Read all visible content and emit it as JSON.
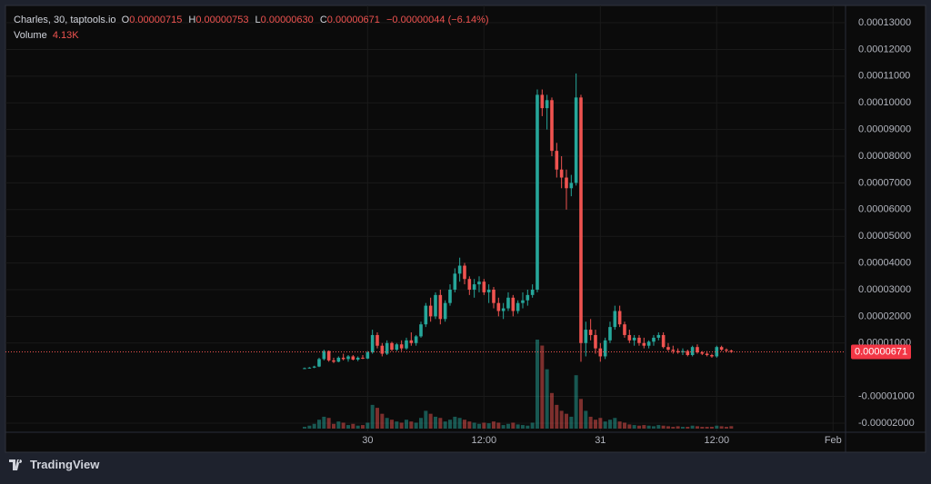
{
  "chart_data": {
    "type": "candlestick",
    "legend": {
      "title": "Charles, 30, taptools.io",
      "o_label": "O",
      "open": "0.00000715",
      "h_label": "H",
      "high": "0.00000753",
      "l_label": "L",
      "low": "0.00000630",
      "c_label": "C",
      "close": "0.00000671",
      "change": "−0.00000044 (−6.14%)",
      "volume_label": "Volume",
      "volume": "4.13K"
    },
    "brand": "TradingView",
    "up_color": "#26a69a",
    "down_color": "#ef5350",
    "grid": true,
    "ylim": [
      -2.41e-05,
      0.0001358
    ],
    "yticks": [
      {
        "value": 0.00013,
        "label": "0.00013000"
      },
      {
        "value": 0.00012,
        "label": "0.00012000"
      },
      {
        "value": 0.00011,
        "label": "0.00011000"
      },
      {
        "value": 0.0001,
        "label": "0.00010000"
      },
      {
        "value": 9e-05,
        "label": "0.00009000"
      },
      {
        "value": 8e-05,
        "label": "0.00008000"
      },
      {
        "value": 7e-05,
        "label": "0.00007000"
      },
      {
        "value": 6e-05,
        "label": "0.00006000"
      },
      {
        "value": 5e-05,
        "label": "0.00005000"
      },
      {
        "value": 4e-05,
        "label": "0.00004000"
      },
      {
        "value": 3e-05,
        "label": "0.00003000"
      },
      {
        "value": 2e-05,
        "label": "0.00002000"
      },
      {
        "value": 1e-05,
        "label": "0.00001000"
      },
      {
        "value": -1e-05,
        "label": "-0.00001000"
      },
      {
        "value": -2e-05,
        "label": "-0.00002000"
      }
    ],
    "xticks": [
      {
        "value": 13,
        "label": "30"
      },
      {
        "value": 37,
        "label": "12:00"
      },
      {
        "value": 61,
        "label": "31"
      },
      {
        "value": 85,
        "label": "12:00"
      },
      {
        "value": 109,
        "label": "Feb"
      }
    ],
    "open": [
      5e-07,
      6e-07,
      8e-07,
      1.2e-06,
      4e-06,
      7e-06,
      3.5e-06,
      3e-06,
      4.5e-06,
      4e-06,
      5e-06,
      3.8e-06,
      4.5e-06,
      4.2e-06,
      6.5e-06,
      1.3e-05,
      9e-06,
      6e-06,
      1e-05,
      7.5e-06,
      9.5e-06,
      8e-06,
      1.1e-05,
      1e-05,
      1.25e-05,
      1.7e-05,
      2.4e-05,
      2e-05,
      2.8e-05,
      1.9e-05,
      2.5e-05,
      3e-05,
      3.6e-05,
      3.9e-05,
      3.4e-05,
      3e-05,
      3.2e-05,
      3.3e-05,
      2.9e-05,
      3e-05,
      2.5e-05,
      2.2e-05,
      2.3e-05,
      2.7e-05,
      2.2e-05,
      2.5e-05,
      2.6e-05,
      2.8e-05,
      3e-05,
      0.000103,
      9.8e-05,
      0.000101,
      8.2e-05,
      7.5e-05,
      7.2e-05,
      6.8e-05,
      7e-05,
      0.000102,
      1e-05,
      1.5e-05,
      1.3e-05,
      8e-06,
      5e-06,
      1.1e-05,
      1.6e-05,
      2.2e-05,
      1.7e-05,
      1.3e-05,
      1.1e-05,
      1.2e-05,
      1e-05,
      9e-06,
      1.05e-05,
      1.2e-05,
      1.3e-05,
      8.5e-06,
      7.5e-06,
      7e-06,
      6.5e-06,
      7e-06,
      5.5e-06,
      8.5e-06,
      6.5e-06,
      6e-06,
      5.5e-06,
      5e-06,
      8.5e-06,
      7.5e-06,
      7.15e-06
    ],
    "high": [
      8e-07,
      1e-06,
      1.5e-06,
      4.5e-06,
      7.5e-06,
      7.2e-06,
      4.5e-06,
      5e-06,
      6e-06,
      5.5e-06,
      5.5e-06,
      5e-06,
      5.5e-06,
      7e-06,
      1.5e-05,
      1.4e-05,
      1e-05,
      1.1e-05,
      1.05e-05,
      1e-05,
      1.1e-05,
      1.2e-05,
      1.4e-05,
      1.3e-05,
      1.8e-05,
      2.5e-05,
      2.7e-05,
      2.9e-05,
      3e-05,
      2.6e-05,
      3.2e-05,
      3.8e-05,
      4.2e-05,
      4e-05,
      3.5e-05,
      3.4e-05,
      3.5e-05,
      3.4e-05,
      3.2e-05,
      3.1e-05,
      2.7e-05,
      2.5e-05,
      2.9e-05,
      2.8e-05,
      2.6e-05,
      2.9e-05,
      3e-05,
      3.2e-05,
      0.000105,
      0.000105,
      0.000103,
      0.000102,
      8.5e-05,
      8e-05,
      7.5e-05,
      7.3e-05,
      0.000111,
      0.000103,
      1.8e-05,
      1.9e-05,
      1.5e-05,
      1e-05,
      1.2e-05,
      1.8e-05,
      2.4e-05,
      2.4e-05,
      1.8e-05,
      1.5e-05,
      1.3e-05,
      1.3e-05,
      1.2e-05,
      1.1e-05,
      1.3e-05,
      1.4e-05,
      1.4e-05,
      1e-05,
      9e-06,
      8e-06,
      8e-06,
      7.5e-06,
      9e-06,
      9.5e-06,
      7e-06,
      7e-06,
      6e-06,
      9e-06,
      9e-06,
      8e-06,
      7.53e-06
    ],
    "low": [
      3e-07,
      4e-07,
      6e-07,
      1e-06,
      3.5e-06,
      3e-06,
      2.5e-06,
      2.8e-06,
      3.5e-06,
      3e-06,
      3.5e-06,
      3.2e-06,
      4e-06,
      4e-06,
      6e-06,
      8e-06,
      5e-06,
      5.5e-06,
      7e-06,
      7e-06,
      7e-06,
      7.5e-06,
      9e-06,
      9e-06,
      1.2e-05,
      1.6e-05,
      1.8e-05,
      1.9e-05,
      1.7e-05,
      1.8e-05,
      2.4e-05,
      2.9e-05,
      3.3e-05,
      3.2e-05,
      2.8e-05,
      2.7e-05,
      2.9e-05,
      2.8e-05,
      2.5e-05,
      2.3e-05,
      2e-05,
      1.9e-05,
      2.2e-05,
      2e-05,
      2.1e-05,
      2.3e-05,
      2.4e-05,
      2.7e-05,
      2.9e-05,
      9.5e-05,
      9e-05,
      8e-05,
      7.2e-05,
      6.8e-05,
      6e-05,
      6.5e-05,
      6.9e-05,
      3e-06,
      5e-06,
      1.1e-05,
      6e-06,
      3e-06,
      4e-06,
      1e-05,
      1.5e-05,
      1.6e-05,
      1.2e-05,
      1e-05,
      9e-06,
      9e-06,
      8e-06,
      8e-06,
      9e-06,
      1.1e-05,
      8e-06,
      7e-06,
      6e-06,
      6e-06,
      5.5e-06,
      5e-06,
      5e-06,
      6e-06,
      5.5e-06,
      5e-06,
      4.5e-06,
      4.5e-06,
      7e-06,
      6.5e-06,
      6.3e-06
    ],
    "close": [
      6e-07,
      8e-07,
      1.2e-06,
      4e-06,
      7e-06,
      3.5e-06,
      3e-06,
      4.5e-06,
      4e-06,
      5e-06,
      3.8e-06,
      4.5e-06,
      4.2e-06,
      6.5e-06,
      1.3e-05,
      9e-06,
      6e-06,
      1e-05,
      7.5e-06,
      9.5e-06,
      8e-06,
      1.1e-05,
      1e-05,
      1.25e-05,
      1.7e-05,
      2.4e-05,
      2e-05,
      2.8e-05,
      1.9e-05,
      2.5e-05,
      3e-05,
      3.6e-05,
      3.9e-05,
      3.4e-05,
      3e-05,
      3.2e-05,
      3.3e-05,
      2.9e-05,
      3e-05,
      2.5e-05,
      2.2e-05,
      2.3e-05,
      2.7e-05,
      2.2e-05,
      2.5e-05,
      2.6e-05,
      2.8e-05,
      3e-05,
      0.000103,
      9.8e-05,
      0.000101,
      8.2e-05,
      7.5e-05,
      7.2e-05,
      6.8e-05,
      7e-05,
      0.000102,
      1e-05,
      1.5e-05,
      1.3e-05,
      8e-06,
      5e-06,
      1.1e-05,
      1.6e-05,
      2.2e-05,
      1.7e-05,
      1.3e-05,
      1.1e-05,
      1.2e-05,
      1e-05,
      9e-06,
      1.05e-05,
      1.2e-05,
      1.3e-05,
      8.5e-06,
      7.5e-06,
      7e-06,
      6.5e-06,
      7e-06,
      5.5e-06,
      8.5e-06,
      6.5e-06,
      6e-06,
      5.5e-06,
      5e-06,
      8.5e-06,
      7.5e-06,
      7.15e-06,
      6.71e-06
    ],
    "volume": [
      3000,
      5000,
      8000,
      15000,
      20000,
      18000,
      8000,
      12000,
      10000,
      6000,
      8000,
      5000,
      6000,
      10000,
      40000,
      35000,
      25000,
      18000,
      15000,
      12000,
      10000,
      15000,
      12000,
      10000,
      18000,
      30000,
      25000,
      20000,
      18000,
      12000,
      15000,
      20000,
      18000,
      15000,
      12000,
      10000,
      8000,
      10000,
      9000,
      12000,
      10000,
      6000,
      8000,
      10000,
      7000,
      6000,
      5000,
      10000,
      150000,
      140000,
      100000,
      60000,
      40000,
      30000,
      25000,
      20000,
      90000,
      50000,
      30000,
      20000,
      15000,
      18000,
      12000,
      15000,
      18000,
      12000,
      10000,
      7000,
      6000,
      5000,
      6000,
      5000,
      4000,
      6000,
      5000,
      4000,
      3000,
      4000,
      3000,
      3000,
      5000,
      4000,
      3000,
      3000,
      3000,
      5000,
      4000,
      3000,
      4130
    ]
  }
}
